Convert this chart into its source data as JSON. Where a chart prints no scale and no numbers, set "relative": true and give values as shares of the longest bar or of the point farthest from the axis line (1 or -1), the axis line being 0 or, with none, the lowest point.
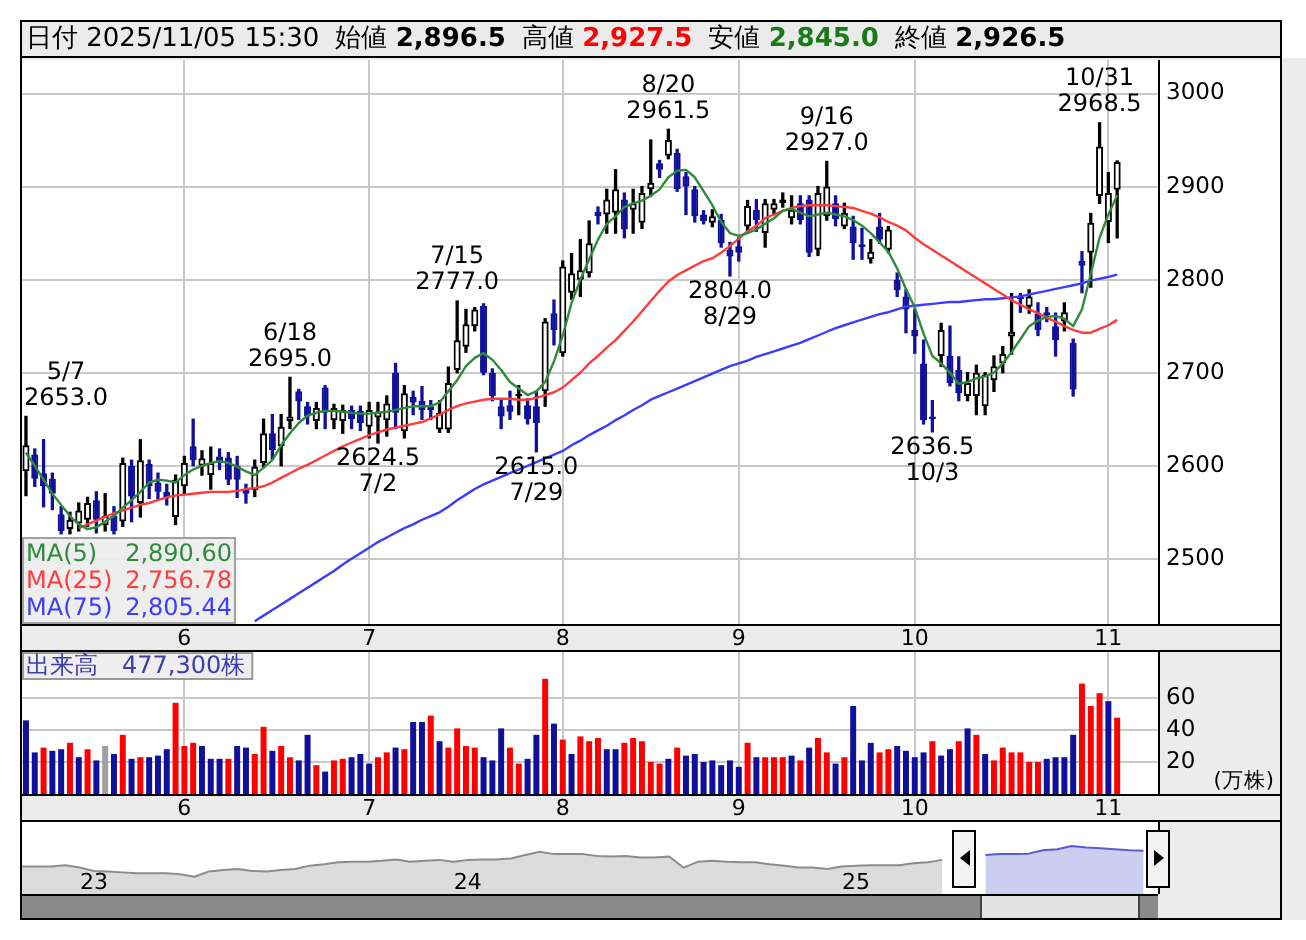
{
  "chart_data": [
    {
      "type": "candlestick",
      "title": "日付 2025/11/05 15:30 始値 2,896.5 高値 2,927.5 安値 2,845.0 終値 2,926.5",
      "annotations": [
        "5/7 2653.0",
        {
          "text": "6/18 2695.0",
          "y": 2695
        },
        {
          "text": "2624.5 7/2",
          "y": 2624.5
        },
        {
          "text": "7/15 2777.0",
          "y": 2777
        },
        {
          "text": "2615.0 7/29",
          "y": 2615
        },
        {
          "text": "8/20 2961.5",
          "y": 2961.5
        },
        {
          "text": "2804.0 8/29",
          "y": 2804
        },
        {
          "text": "9/16 2927.0",
          "y": 2927
        },
        {
          "text": "2636.5 10/3",
          "y": 2636.5
        },
        {
          "text": "10/31 2968.5",
          "y": 2968.5
        }
      ],
      "categories": [
        null,
        null,
        null,
        null,
        null,
        null,
        null,
        null,
        null,
        null,
        null,
        null,
        null,
        null,
        null,
        null,
        null,
        null,
        "6",
        null,
        null,
        null,
        null,
        null,
        null,
        null,
        null,
        null,
        null,
        null,
        null,
        null,
        null,
        null,
        null,
        null,
        null,
        null,
        null,
        "7",
        null,
        null,
        null,
        null,
        null,
        null,
        null,
        null,
        null,
        null,
        null,
        null,
        null,
        null,
        null,
        null,
        null,
        null,
        null,
        null,
        null,
        "8",
        null,
        null,
        null,
        null,
        null,
        null,
        null,
        null,
        null,
        null,
        null,
        null,
        null,
        null,
        null,
        null,
        null,
        null,
        null,
        "9",
        null,
        null,
        null,
        null,
        null,
        null,
        null,
        null,
        null,
        null,
        null,
        null,
        null,
        null,
        null,
        null,
        null,
        null,
        null,
        "10",
        null,
        null,
        null,
        null,
        null,
        null,
        null,
        null,
        null,
        null,
        null,
        null,
        null,
        null,
        null,
        null,
        null,
        null,
        null,
        null,
        null,
        "11",
        null
      ],
      "ohlc": [
        [
          2594,
          2653,
          2568,
          2622
        ],
        [
          2612,
          2618,
          2578,
          2586
        ],
        [
          2592,
          2628,
          2556,
          2578
        ],
        [
          2586,
          2592,
          2553,
          2570
        ],
        [
          2548,
          2556,
          2527,
          2530
        ],
        [
          2532,
          2550,
          2527,
          2542
        ],
        [
          2538,
          2560,
          2530,
          2552
        ],
        [
          2542,
          2566,
          2535,
          2560
        ],
        [
          2563,
          2572,
          2528,
          2542
        ],
        [
          2536,
          2570,
          2530,
          2546
        ],
        [
          2546,
          2556,
          2527,
          2530
        ],
        [
          2540,
          2608,
          2535,
          2603
        ],
        [
          2600,
          2606,
          2540,
          2567
        ],
        [
          2560,
          2628,
          2545,
          2606
        ],
        [
          2602,
          2606,
          2565,
          2578
        ],
        [
          2582,
          2592,
          2563,
          2572
        ],
        [
          2572,
          2580,
          2558,
          2565
        ],
        [
          2545,
          2590,
          2537,
          2585
        ],
        [
          2578,
          2610,
          2570,
          2603
        ],
        [
          2621,
          2650,
          2600,
          2606
        ],
        [
          2600,
          2616,
          2590,
          2608
        ],
        [
          2590,
          2620,
          2575,
          2603
        ],
        [
          2610,
          2618,
          2596,
          2603
        ],
        [
          2609,
          2614,
          2580,
          2585
        ],
        [
          2600,
          2610,
          2566,
          2585
        ],
        [
          2575,
          2580,
          2560,
          2570
        ],
        [
          2574,
          2606,
          2567,
          2599
        ],
        [
          2603,
          2650,
          2598,
          2635
        ],
        [
          2635,
          2655,
          2607,
          2617
        ],
        [
          2621,
          2655,
          2600,
          2642
        ],
        [
          2648,
          2695,
          2640,
          2653
        ],
        [
          2680,
          2682,
          2650,
          2669
        ],
        [
          2664,
          2668,
          2645,
          2653
        ],
        [
          2648,
          2668,
          2640,
          2662
        ],
        [
          2684,
          2686,
          2640,
          2657
        ],
        [
          2649,
          2666,
          2640,
          2662
        ],
        [
          2648,
          2665,
          2635,
          2660
        ],
        [
          2660,
          2664,
          2640,
          2650
        ],
        [
          2659,
          2664,
          2638,
          2646
        ],
        [
          2642,
          2668,
          2630,
          2660
        ],
        [
          2652,
          2668,
          2624.5,
          2658
        ],
        [
          2649,
          2675,
          2632,
          2667
        ],
        [
          2700,
          2710,
          2640,
          2657
        ],
        [
          2637,
          2686,
          2630,
          2678
        ],
        [
          2674,
          2680,
          2655,
          2668
        ],
        [
          2670,
          2685,
          2650,
          2660
        ],
        [
          2664,
          2670,
          2650,
          2660
        ],
        [
          2639,
          2670,
          2636,
          2657
        ],
        [
          2639,
          2706,
          2636,
          2689
        ],
        [
          2703,
          2777,
          2700,
          2735
        ],
        [
          2728,
          2768,
          2722,
          2752
        ],
        [
          2750,
          2770,
          2745,
          2768
        ],
        [
          2772,
          2774,
          2698,
          2700
        ],
        [
          2700,
          2704,
          2670,
          2675
        ],
        [
          2664,
          2672,
          2640,
          2653
        ],
        [
          2665,
          2680,
          2650,
          2658
        ],
        [
          2675,
          2686,
          2655,
          2677
        ],
        [
          2665,
          2672,
          2645,
          2650
        ],
        [
          2664,
          2680,
          2615,
          2646
        ],
        [
          2680,
          2758,
          2664,
          2755
        ],
        [
          2764,
          2778,
          2730,
          2746
        ],
        [
          2721,
          2820,
          2718,
          2814
        ],
        [
          2786,
          2828,
          2779,
          2807
        ],
        [
          2800,
          2843,
          2782,
          2810
        ],
        [
          2807,
          2863,
          2803,
          2839
        ],
        [
          2873,
          2878,
          2860,
          2868
        ],
        [
          2870,
          2897,
          2850,
          2886
        ],
        [
          2872,
          2918,
          2850,
          2897
        ],
        [
          2886,
          2893,
          2845,
          2854
        ],
        [
          2875,
          2897,
          2850,
          2882
        ],
        [
          2861,
          2900,
          2855,
          2893
        ],
        [
          2897,
          2950,
          2890,
          2904
        ],
        [
          2925,
          2928,
          2910,
          2918
        ],
        [
          2933,
          2961.5,
          2930,
          2950
        ],
        [
          2936,
          2940,
          2895,
          2897
        ],
        [
          2911,
          2915,
          2870,
          2900
        ],
        [
          2897,
          2900,
          2862,
          2868
        ],
        [
          2870,
          2874,
          2860,
          2863
        ],
        [
          2861,
          2875,
          2857,
          2868
        ],
        [
          2864,
          2870,
          2835,
          2839
        ],
        [
          2832,
          2840,
          2804,
          2825
        ],
        [
          2836,
          2845,
          2820,
          2829
        ],
        [
          2857,
          2885,
          2850,
          2879
        ],
        [
          2875,
          2886,
          2852,
          2864
        ],
        [
          2850,
          2886,
          2835,
          2882
        ],
        [
          2875,
          2886,
          2870,
          2882
        ],
        [
          2882,
          2893,
          2878,
          2886
        ],
        [
          2866,
          2890,
          2860,
          2875
        ],
        [
          2882,
          2890,
          2860,
          2864
        ],
        [
          2886,
          2890,
          2825,
          2829
        ],
        [
          2832,
          2900,
          2826,
          2893
        ],
        [
          2868,
          2927,
          2864,
          2900
        ],
        [
          2882,
          2890,
          2858,
          2865
        ],
        [
          2857,
          2882,
          2855,
          2872
        ],
        [
          2857,
          2868,
          2822,
          2839
        ],
        [
          2838,
          2855,
          2822,
          2835
        ],
        [
          2822,
          2843,
          2818,
          2830
        ],
        [
          2857,
          2871,
          2839,
          2843
        ],
        [
          2832,
          2857,
          2829,
          2854
        ],
        [
          2800,
          2807,
          2782,
          2789
        ],
        [
          2782,
          2789,
          2743,
          2768
        ],
        [
          2746,
          2768,
          2721,
          2739
        ],
        [
          2710,
          2735,
          2645,
          2649
        ],
        [
          2653,
          2670,
          2636.5,
          2650
        ],
        [
          2718,
          2753,
          2707,
          2746
        ],
        [
          2718,
          2750,
          2686,
          2689
        ],
        [
          2703,
          2717,
          2670,
          2678
        ],
        [
          2675,
          2700,
          2670,
          2689
        ],
        [
          2675,
          2708,
          2655,
          2700
        ],
        [
          2664,
          2700,
          2655,
          2698
        ],
        [
          2692,
          2718,
          2680,
          2707
        ],
        [
          2710,
          2728,
          2700,
          2720
        ],
        [
          2739,
          2785,
          2720,
          2744
        ],
        [
          2782,
          2785,
          2765,
          2779
        ],
        [
          2771,
          2789,
          2764,
          2782
        ],
        [
          2764,
          2775,
          2740,
          2746
        ],
        [
          2765,
          2770,
          2755,
          2762
        ],
        [
          2750,
          2764,
          2718,
          2735
        ],
        [
          2755,
          2775,
          2745,
          2765
        ],
        [
          2732,
          2736,
          2675,
          2682
        ],
        [
          2820,
          2830,
          2786,
          2815
        ],
        [
          2829,
          2871,
          2792,
          2861
        ],
        [
          2890,
          2968.5,
          2882,
          2943
        ],
        [
          2862,
          2915,
          2840,
          2893
        ],
        [
          2896.5,
          2927.5,
          2845,
          2926.5
        ]
      ],
      "colors": [
        "#000000",
        "#10109c",
        "#10109c",
        "#10109c",
        "#10109c",
        "#000000",
        "#000000",
        "#000000",
        "#10109c",
        "#000000",
        "#10109c",
        "#000000",
        "#10109c",
        "#000000",
        "#10109c",
        "#10109c",
        "#10109c",
        "#000000",
        "#000000",
        "#10109c",
        "#000000",
        "#000000",
        "#10109c",
        "#10109c",
        "#10109c",
        "#10109c",
        "#000000",
        "#000000",
        "#10109c",
        "#000000",
        "#000000",
        "#10109c",
        "#10109c",
        "#000000",
        "#10109c",
        "#000000",
        "#000000",
        "#10109c",
        "#10109c",
        "#000000",
        "#000000",
        "#000000",
        "#10109c",
        "#000000",
        "#10109c",
        "#10109c",
        "#10109c",
        "#000000",
        "#000000",
        "#000000",
        "#000000",
        "#000000",
        "#10109c",
        "#10109c",
        "#10109c",
        "#10109c",
        "#000000",
        "#10109c",
        "#10109c",
        "#000000",
        "#10109c",
        "#000000",
        "#000000",
        "#000000",
        "#000000",
        "#10109c",
        "#000000",
        "#000000",
        "#10109c",
        "#000000",
        "#000000",
        "#000000",
        "#10109c",
        "#000000",
        "#10109c",
        "#10109c",
        "#10109c",
        "#10109c",
        "#000000",
        "#10109c",
        "#10109c",
        "#10109c",
        "#000000",
        "#10109c",
        "#000000",
        "#000000",
        "#000000",
        "#000000",
        "#10109c",
        "#10109c",
        "#000000",
        "#000000",
        "#10109c",
        "#000000",
        "#10109c",
        "#10109c",
        "#000000",
        "#10109c",
        "#000000",
        "#10109c",
        "#10109c",
        "#10109c",
        "#10109c",
        "#10109c",
        "#000000",
        "#10109c",
        "#10109c",
        "#000000",
        "#000000",
        "#000000",
        "#000000",
        "#000000",
        "#000000",
        "#10109c",
        "#000000",
        "#10109c",
        "#10109c",
        "#10109c",
        "#000000",
        "#10109c",
        "#10109c",
        "#000000",
        "#000000",
        "#000000",
        "#000000"
      ],
      "series": [
        {
          "name": "MA(5) 2,890.60",
          "type": "line",
          "color": "#2e8b3a",
          "values": [
            2614,
            2600,
            2585,
            2570,
            2558,
            2546,
            2537,
            2532,
            2534,
            2540,
            2546,
            2555,
            2563,
            2572,
            2582,
            2585,
            2584,
            2582,
            2590,
            2596,
            2600,
            2603,
            2605,
            2603,
            2599,
            2594,
            2590,
            2598,
            2606,
            2622,
            2635,
            2646,
            2654,
            2657,
            2659,
            2659,
            2658,
            2657,
            2656,
            2656,
            2657,
            2658,
            2660,
            2662,
            2664,
            2664,
            2664,
            2668,
            2680,
            2692,
            2707,
            2716,
            2721,
            2714,
            2703,
            2690,
            2683,
            2676,
            2680,
            2690,
            2712,
            2740,
            2775,
            2800,
            2822,
            2843,
            2860,
            2868,
            2878,
            2882,
            2885,
            2890,
            2897,
            2910,
            2917,
            2918,
            2910,
            2895,
            2880,
            2862,
            2850,
            2847,
            2850,
            2854,
            2860,
            2866,
            2874,
            2876,
            2872,
            2868,
            2870,
            2872,
            2870,
            2868,
            2864,
            2858,
            2850,
            2840,
            2830,
            2812,
            2790,
            2770,
            2742,
            2718,
            2710,
            2700,
            2688,
            2690,
            2694,
            2696,
            2700,
            2710,
            2722,
            2736,
            2750,
            2756,
            2760,
            2761,
            2758,
            2750,
            2768,
            2806,
            2845,
            2870,
            2890.6
          ]
        },
        {
          "name": "MA(25) 2,756.78",
          "type": "line",
          "color": "#ff3c3c",
          "values": [
            null,
            null,
            null,
            null,
            null,
            null,
            2533,
            2537,
            2541,
            2545,
            2549,
            2552,
            2555,
            2558,
            2560,
            2563,
            2566,
            2568,
            2569,
            2570,
            2571,
            2572,
            2572,
            2572,
            2573,
            2575,
            2576,
            2578,
            2582,
            2587,
            2592,
            2597,
            2601,
            2606,
            2611,
            2616,
            2621,
            2625,
            2629,
            2633,
            2636,
            2639,
            2641,
            2643,
            2645,
            2647,
            2651,
            2655,
            2660,
            2664,
            2667,
            2669,
            2671,
            2672,
            2672,
            2672,
            2671,
            2671,
            2673,
            2676,
            2679,
            2684,
            2692,
            2700,
            2710,
            2718,
            2727,
            2735,
            2745,
            2755,
            2766,
            2777,
            2788,
            2798,
            2805,
            2810,
            2815,
            2820,
            2823,
            2829,
            2836,
            2844,
            2852,
            2858,
            2866,
            2870,
            2874,
            2877,
            2879,
            2880,
            2880,
            2880,
            2879,
            2878,
            2877,
            2874,
            2871,
            2867,
            2862,
            2858,
            2853,
            2845,
            2838,
            2832,
            2826,
            2820,
            2814,
            2808,
            2802,
            2796,
            2790,
            2784,
            2778,
            2773,
            2768,
            2764,
            2759,
            2755,
            2750,
            2746,
            2743,
            2743,
            2747,
            2751,
            2756.78
          ]
        },
        {
          "name": "MA(75) 2,805.44",
          "type": "line",
          "color": "#3c3cff",
          "values": [
            null,
            null,
            null,
            null,
            null,
            null,
            null,
            null,
            null,
            null,
            null,
            null,
            null,
            null,
            null,
            null,
            null,
            null,
            null,
            null,
            null,
            null,
            null,
            null,
            null,
            null,
            2433,
            2439,
            2445,
            2451,
            2457,
            2463,
            2469,
            2475,
            2481,
            2487,
            2494,
            2500,
            2506,
            2512,
            2518,
            2523,
            2528,
            2533,
            2537,
            2542,
            2546,
            2550,
            2556,
            2563,
            2569,
            2575,
            2580,
            2584,
            2588,
            2592,
            2596,
            2600,
            2604,
            2608,
            2612,
            2616,
            2622,
            2627,
            2633,
            2638,
            2643,
            2649,
            2654,
            2660,
            2665,
            2671,
            2675,
            2679,
            2683,
            2687,
            2691,
            2695,
            2699,
            2703,
            2707,
            2710,
            2713,
            2717,
            2720,
            2723,
            2726,
            2729,
            2732,
            2736,
            2740,
            2744,
            2748,
            2751,
            2754,
            2757,
            2760,
            2763,
            2765,
            2768,
            2771,
            2772,
            2773,
            2774,
            2775,
            2776,
            2776,
            2777,
            2778,
            2779,
            2779,
            2780,
            2781,
            2782,
            2784,
            2786,
            2788,
            2790,
            2792,
            2794,
            2796,
            2799,
            2801,
            2803,
            2805.44
          ]
        }
      ],
      "ylim": [
        2430,
        3036
      ],
      "yticks": [
        2500,
        2600,
        2700,
        2800,
        2900,
        3000
      ],
      "grid": true,
      "legend": "bottom left",
      "marker": "none"
    },
    {
      "type": "bar",
      "title": "出来高　477,300株",
      "ylabel": "(万株)",
      "categories": [
        null,
        null,
        null,
        null,
        null,
        null,
        null,
        null,
        null,
        null,
        null,
        null,
        null,
        null,
        null,
        null,
        null,
        null,
        "6",
        null,
        null,
        null,
        null,
        null,
        null,
        null,
        null,
        null,
        null,
        null,
        null,
        null,
        null,
        null,
        null,
        null,
        null,
        null,
        null,
        "7",
        null,
        null,
        null,
        null,
        null,
        null,
        null,
        null,
        null,
        null,
        null,
        null,
        null,
        null,
        null,
        null,
        null,
        null,
        null,
        null,
        null,
        "8",
        null,
        null,
        null,
        null,
        null,
        null,
        null,
        null,
        null,
        null,
        null,
        null,
        null,
        null,
        null,
        null,
        null,
        null,
        null,
        "9",
        null,
        null,
        null,
        null,
        null,
        null,
        null,
        null,
        null,
        null,
        null,
        null,
        null,
        null,
        null,
        null,
        null,
        null,
        null,
        "10",
        null,
        null,
        null,
        null,
        null,
        null,
        null,
        null,
        null,
        null,
        null,
        null,
        null,
        null,
        null,
        null,
        null,
        null,
        null,
        null,
        null,
        "11",
        null
      ],
      "values": [
        46,
        26,
        29,
        27,
        28,
        32,
        23,
        28,
        21,
        30,
        25,
        37,
        22,
        23,
        23,
        24,
        28,
        57,
        30,
        32,
        30,
        22,
        22,
        22,
        30,
        29,
        25,
        42,
        27,
        30,
        23,
        21,
        37,
        18,
        14,
        21,
        22,
        23,
        25,
        19,
        23,
        26,
        29,
        28,
        45,
        45,
        49,
        33,
        29,
        41,
        30,
        29,
        23,
        21,
        41,
        29,
        19,
        22,
        37,
        72,
        44,
        34,
        25,
        36,
        33,
        35,
        28,
        28,
        32,
        35,
        33,
        20,
        19,
        22,
        29,
        24,
        25,
        20,
        21,
        18,
        21,
        17,
        32,
        23,
        23,
        23,
        23,
        24,
        21,
        29,
        35,
        26,
        19,
        23,
        55,
        21,
        32,
        26,
        28,
        30,
        27,
        23,
        26,
        33,
        24,
        28,
        33,
        41,
        37,
        25,
        21,
        29,
        26,
        26,
        20,
        20,
        22,
        23,
        23,
        37,
        69,
        55,
        63,
        58,
        47.73
      ],
      "colors": [
        "#10109c",
        "#10109c",
        "#ff0000",
        "#10109c",
        "#10109c",
        "#ff0000",
        "#10109c",
        "#ff0000",
        "#10109c",
        "#a0a0a0",
        "#10109c",
        "#ff0000",
        "#10109c",
        "#ff0000",
        "#10109c",
        "#10109c",
        "#10109c",
        "#ff0000",
        "#ff0000",
        "#ff0000",
        "#10109c",
        "#10109c",
        "#10109c",
        "#ff0000",
        "#10109c",
        "#10109c",
        "#ff0000",
        "#ff0000",
        "#10109c",
        "#ff0000",
        "#ff0000",
        "#10109c",
        "#10109c",
        "#ff0000",
        "#10109c",
        "#ff0000",
        "#ff0000",
        "#10109c",
        "#10109c",
        "#10109c",
        "#ff0000",
        "#ff0000",
        "#10109c",
        "#ff0000",
        "#10109c",
        "#10109c",
        "#ff0000",
        "#10109c",
        "#ff0000",
        "#ff0000",
        "#ff0000",
        "#ff0000",
        "#10109c",
        "#10109c",
        "#10109c",
        "#ff0000",
        "#ff0000",
        "#10109c",
        "#10109c",
        "#ff0000",
        "#10109c",
        "#ff0000",
        "#10109c",
        "#ff0000",
        "#ff0000",
        "#ff0000",
        "#10109c",
        "#10109c",
        "#ff0000",
        "#ff0000",
        "#ff0000",
        "#ff0000",
        "#ff0000",
        "#10109c",
        "#ff0000",
        "#10109c",
        "#10109c",
        "#10109c",
        "#10109c",
        "#10109c",
        "#10109c",
        "#10109c",
        "#ff0000",
        "#10109c",
        "#ff0000",
        "#ff0000",
        "#ff0000",
        "#10109c",
        "#ff0000",
        "#10109c",
        "#ff0000",
        "#ff0000",
        "#10109c",
        "#ff0000",
        "#10109c",
        "#10109c",
        "#10109c",
        "#ff0000",
        "#ff0000",
        "#10109c",
        "#10109c",
        "#10109c",
        "#10109c",
        "#ff0000",
        "#10109c",
        "#10109c",
        "#ff0000",
        "#10109c",
        "#ff0000",
        "#10109c",
        "#ff0000",
        "#ff0000",
        "#ff0000",
        "#ff0000",
        "#ff0000",
        "#ff0000",
        "#10109c",
        "#10109c",
        "#10109c",
        "#10109c",
        "#ff0000",
        "#ff0000",
        "#ff0000",
        "#10109c",
        "#ff0000"
      ],
      "ylim": [
        0,
        90
      ],
      "yticks": [
        20,
        40,
        60
      ],
      "grid": true
    },
    {
      "type": "area",
      "relative": true,
      "marker": "none",
      "categories": [
        null,
        null,
        null,
        null,
        null,
        "23",
        null,
        null,
        null,
        null,
        null,
        null,
        null,
        null,
        null,
        null,
        null,
        null,
        null,
        null,
        null,
        null,
        null,
        null,
        null,
        null,
        null,
        null,
        null,
        null,
        null,
        "24",
        null,
        null,
        null,
        null,
        null,
        null,
        null,
        null,
        null,
        null,
        null,
        null,
        null,
        null,
        null,
        null,
        null,
        null,
        null,
        null,
        null,
        null,
        null,
        null,
        null,
        null,
        "25",
        null,
        null,
        null,
        null,
        null,
        null,
        null,
        null,
        null,
        null,
        null,
        null,
        null,
        null,
        null,
        null,
        null,
        null,
        null,
        null,
        null
      ],
      "series": [
        {
          "color": "#8c8c8c",
          "values": [
            0.57,
            0.57,
            0.57,
            0.6,
            0.55,
            0.48,
            0.47,
            0.45,
            0.43,
            0.43,
            0.43,
            0.41,
            0.36,
            0.47,
            0.5,
            0.52,
            0.48,
            0.47,
            0.5,
            0.52,
            0.59,
            0.62,
            0.66,
            0.67,
            0.67,
            0.69,
            0.72,
            0.67,
            0.69,
            0.71,
            0.67,
            0.71,
            0.72,
            0.72,
            0.74,
            0.81,
            0.88,
            0.83,
            0.83,
            0.83,
            0.79,
            0.78,
            0.79,
            0.76,
            0.76,
            0.78,
            0.55,
            0.67,
            0.69,
            0.67,
            0.66,
            0.66,
            0.62,
            0.59,
            0.55,
            0.55,
            0.52,
            0.57,
            0.59,
            0.6,
            0.6,
            0.6,
            0.64,
            0.66,
            0.71,
            null,
            null,
            null,
            null,
            null,
            null,
            null,
            null,
            null,
            null,
            null,
            null,
            null,
            null,
            null
          ]
        },
        {
          "color": "#5a5ad2",
          "values": [
            null,
            null,
            null,
            null,
            null,
            null,
            null,
            null,
            null,
            null,
            null,
            null,
            null,
            null,
            null,
            null,
            null,
            null,
            null,
            null,
            null,
            null,
            null,
            null,
            null,
            null,
            null,
            null,
            null,
            null,
            null,
            null,
            null,
            null,
            null,
            null,
            null,
            null,
            null,
            null,
            null,
            null,
            null,
            null,
            null,
            null,
            null,
            null,
            null,
            null,
            null,
            null,
            null,
            null,
            null,
            null,
            null,
            null,
            null,
            null,
            null,
            null,
            null,
            null,
            null,
            null,
            null,
            0.81,
            0.83,
            0.83,
            0.84,
            0.91,
            0.93,
            1,
            0.97,
            0.95,
            0.93,
            0.91,
            0.9,
            null
          ]
        }
      ]
    }
  ]
}
